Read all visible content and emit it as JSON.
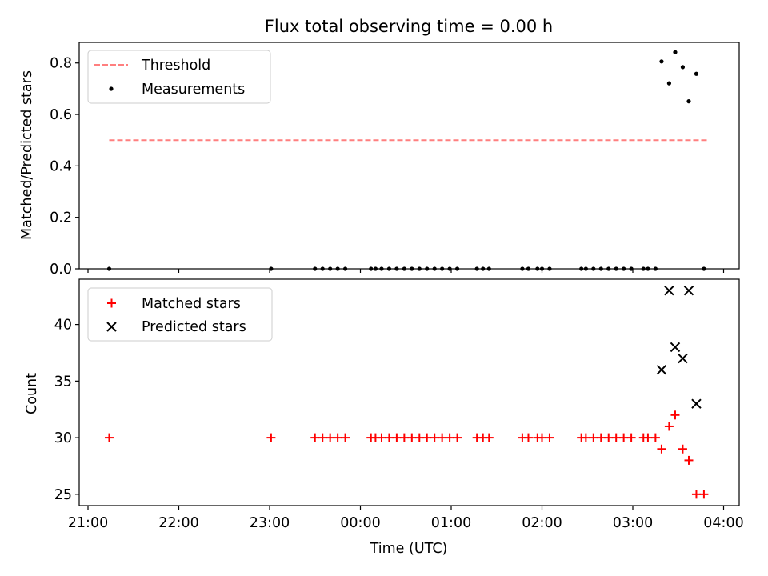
{
  "chart_data": [
    {
      "type": "scatter",
      "title": "Flux total observing time = 0.00 h",
      "xlabel": "",
      "ylabel": "Matched/Predicted stars",
      "ylim": [
        0.0,
        0.88
      ],
      "yticks": [
        "0.0",
        "0.2",
        "0.4",
        "0.6",
        "0.8"
      ],
      "legend_position": "top-left",
      "series": [
        {
          "name": "Threshold",
          "style": "dashed-line",
          "color": "#ff7f7f",
          "points": [
            {
              "x": "21:14",
              "y": 0.5
            },
            {
              "x": "03:50",
              "y": 0.5
            }
          ]
        },
        {
          "name": "Measurements",
          "style": "dot",
          "color": "#000000",
          "points": [
            {
              "x": "21:14",
              "y": 0.0
            },
            {
              "x": "23:01",
              "y": 0.0
            },
            {
              "x": "23:30",
              "y": 0.0
            },
            {
              "x": "23:35",
              "y": 0.0
            },
            {
              "x": "23:40",
              "y": 0.0
            },
            {
              "x": "23:45",
              "y": 0.0
            },
            {
              "x": "23:50",
              "y": 0.0
            },
            {
              "x": "00:07",
              "y": 0.0
            },
            {
              "x": "00:10",
              "y": 0.0
            },
            {
              "x": "00:14",
              "y": 0.0
            },
            {
              "x": "00:19",
              "y": 0.0
            },
            {
              "x": "00:24",
              "y": 0.0
            },
            {
              "x": "00:29",
              "y": 0.0
            },
            {
              "x": "00:34",
              "y": 0.0
            },
            {
              "x": "00:39",
              "y": 0.0
            },
            {
              "x": "00:44",
              "y": 0.0
            },
            {
              "x": "00:49",
              "y": 0.0
            },
            {
              "x": "00:54",
              "y": 0.0
            },
            {
              "x": "00:59",
              "y": 0.0
            },
            {
              "x": "01:04",
              "y": 0.0
            },
            {
              "x": "01:17",
              "y": 0.0
            },
            {
              "x": "01:21",
              "y": 0.0
            },
            {
              "x": "01:25",
              "y": 0.0
            },
            {
              "x": "01:47",
              "y": 0.0
            },
            {
              "x": "01:51",
              "y": 0.0
            },
            {
              "x": "01:57",
              "y": 0.0
            },
            {
              "x": "02:00",
              "y": 0.0
            },
            {
              "x": "02:05",
              "y": 0.0
            },
            {
              "x": "02:26",
              "y": 0.0
            },
            {
              "x": "02:29",
              "y": 0.0
            },
            {
              "x": "02:34",
              "y": 0.0
            },
            {
              "x": "02:39",
              "y": 0.0
            },
            {
              "x": "02:44",
              "y": 0.0
            },
            {
              "x": "02:49",
              "y": 0.0
            },
            {
              "x": "02:54",
              "y": 0.0
            },
            {
              "x": "02:59",
              "y": 0.0
            },
            {
              "x": "03:07",
              "y": 0.0
            },
            {
              "x": "03:10",
              "y": 0.0
            },
            {
              "x": "03:15",
              "y": 0.0
            },
            {
              "x": "03:19",
              "y": 0.806
            },
            {
              "x": "03:24",
              "y": 0.721
            },
            {
              "x": "03:28",
              "y": 0.842
            },
            {
              "x": "03:33",
              "y": 0.784
            },
            {
              "x": "03:37",
              "y": 0.651
            },
            {
              "x": "03:42",
              "y": 0.758
            },
            {
              "x": "03:47",
              "y": 0.0
            }
          ]
        }
      ]
    },
    {
      "type": "scatter",
      "title": "",
      "xlabel": "Time (UTC)",
      "ylabel": "Count",
      "ylim": [
        24.0,
        44.0
      ],
      "yticks": [
        "25",
        "30",
        "35",
        "40"
      ],
      "xticks": [
        "21:00",
        "22:00",
        "23:00",
        "00:00",
        "01:00",
        "02:00",
        "03:00",
        "04:00"
      ],
      "legend_position": "top-left",
      "series": [
        {
          "name": "Matched stars",
          "style": "plus",
          "color": "#ff0000",
          "points": [
            {
              "x": "21:14",
              "y": 30
            },
            {
              "x": "23:01",
              "y": 30
            },
            {
              "x": "23:30",
              "y": 30
            },
            {
              "x": "23:35",
              "y": 30
            },
            {
              "x": "23:40",
              "y": 30
            },
            {
              "x": "23:45",
              "y": 30
            },
            {
              "x": "23:50",
              "y": 30
            },
            {
              "x": "00:07",
              "y": 30
            },
            {
              "x": "00:10",
              "y": 30
            },
            {
              "x": "00:14",
              "y": 30
            },
            {
              "x": "00:19",
              "y": 30
            },
            {
              "x": "00:24",
              "y": 30
            },
            {
              "x": "00:29",
              "y": 30
            },
            {
              "x": "00:34",
              "y": 30
            },
            {
              "x": "00:39",
              "y": 30
            },
            {
              "x": "00:44",
              "y": 30
            },
            {
              "x": "00:49",
              "y": 30
            },
            {
              "x": "00:54",
              "y": 30
            },
            {
              "x": "00:59",
              "y": 30
            },
            {
              "x": "01:04",
              "y": 30
            },
            {
              "x": "01:17",
              "y": 30
            },
            {
              "x": "01:21",
              "y": 30
            },
            {
              "x": "01:25",
              "y": 30
            },
            {
              "x": "01:47",
              "y": 30
            },
            {
              "x": "01:51",
              "y": 30
            },
            {
              "x": "01:57",
              "y": 30
            },
            {
              "x": "02:00",
              "y": 30
            },
            {
              "x": "02:05",
              "y": 30
            },
            {
              "x": "02:26",
              "y": 30
            },
            {
              "x": "02:29",
              "y": 30
            },
            {
              "x": "02:34",
              "y": 30
            },
            {
              "x": "02:39",
              "y": 30
            },
            {
              "x": "02:44",
              "y": 30
            },
            {
              "x": "02:49",
              "y": 30
            },
            {
              "x": "02:54",
              "y": 30
            },
            {
              "x": "02:59",
              "y": 30
            },
            {
              "x": "03:07",
              "y": 30
            },
            {
              "x": "03:10",
              "y": 30
            },
            {
              "x": "03:15",
              "y": 30
            },
            {
              "x": "03:19",
              "y": 29
            },
            {
              "x": "03:24",
              "y": 31
            },
            {
              "x": "03:28",
              "y": 32
            },
            {
              "x": "03:33",
              "y": 29
            },
            {
              "x": "03:37",
              "y": 28
            },
            {
              "x": "03:42",
              "y": 25
            },
            {
              "x": "03:47",
              "y": 25
            }
          ]
        },
        {
          "name": "Predicted stars",
          "style": "x",
          "color": "#000000",
          "points": [
            {
              "x": "03:19",
              "y": 36
            },
            {
              "x": "03:24",
              "y": 43
            },
            {
              "x": "03:28",
              "y": 38
            },
            {
              "x": "03:33",
              "y": 37
            },
            {
              "x": "03:37",
              "y": 43
            },
            {
              "x": "03:42",
              "y": 33
            }
          ]
        }
      ]
    }
  ]
}
